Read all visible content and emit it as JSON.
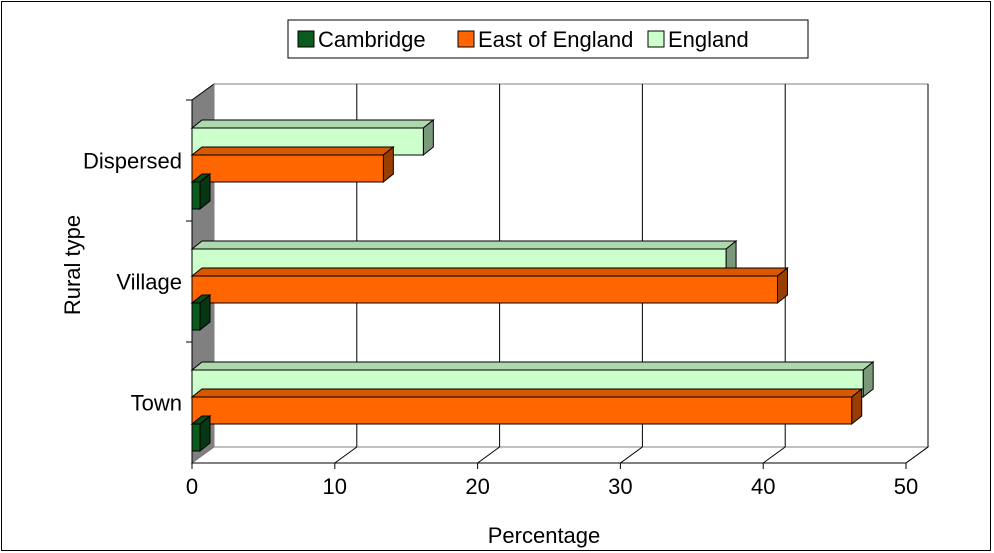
{
  "chart_data": {
    "type": "bar",
    "orientation": "horizontal",
    "style": "3d",
    "categories": [
      "Town",
      "Village",
      "Dispersed"
    ],
    "series": [
      {
        "name": "Cambridge",
        "values": [
          0,
          0,
          0
        ],
        "color": "#0b5a1e"
      },
      {
        "name": "East of England",
        "values": [
          46.2,
          41.0,
          13.4
        ],
        "color": "#ff6600"
      },
      {
        "name": "England",
        "values": [
          47.0,
          37.4,
          16.2
        ],
        "color": "#ccffcc"
      }
    ],
    "xlabel": "Percentage",
    "ylabel": "Rural type",
    "xlim": [
      0,
      50
    ],
    "xticks": [
      "0",
      "10",
      "20",
      "30",
      "40",
      "50"
    ],
    "grid": true,
    "legend_position": "top"
  }
}
